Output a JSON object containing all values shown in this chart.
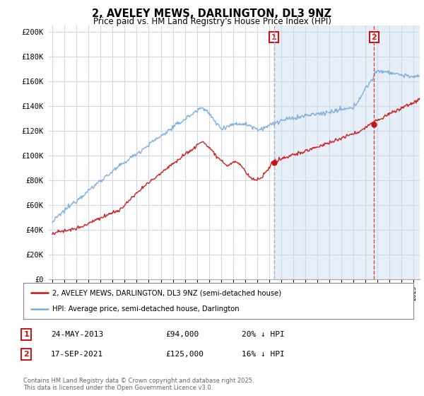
{
  "title": "2, AVELEY MEWS, DARLINGTON, DL3 9NZ",
  "subtitle": "Price paid vs. HM Land Registry's House Price Index (HPI)",
  "ylabel_ticks": [
    "£0",
    "£20K",
    "£40K",
    "£60K",
    "£80K",
    "£100K",
    "£120K",
    "£140K",
    "£160K",
    "£180K",
    "£200K"
  ],
  "ytick_vals": [
    0,
    20000,
    40000,
    60000,
    80000,
    100000,
    120000,
    140000,
    160000,
    180000,
    200000
  ],
  "xlim": [
    1994.7,
    2025.5
  ],
  "ylim": [
    0,
    205000
  ],
  "background_color": "#ffffff",
  "plot_bg_color": "#ffffff",
  "grid_color": "#d0d8e8",
  "hpi_color": "#7aaadd",
  "price_color": "#cc1111",
  "shade_color": "#dce8f5",
  "marker1_x": 2013.39,
  "marker1_price": 94000,
  "marker2_x": 2021.71,
  "marker2_price": 125000,
  "legend_line1": "2, AVELEY MEWS, DARLINGTON, DL3 9NZ (semi-detached house)",
  "legend_line2": "HPI: Average price, semi-detached house, Darlington",
  "table_row1": [
    "1",
    "24-MAY-2013",
    "£94,000",
    "20% ↓ HPI"
  ],
  "table_row2": [
    "2",
    "17-SEP-2021",
    "£125,000",
    "16% ↓ HPI"
  ],
  "footnote": "Contains HM Land Registry data © Crown copyright and database right 2025.\nThis data is licensed under the Open Government Licence v3.0."
}
